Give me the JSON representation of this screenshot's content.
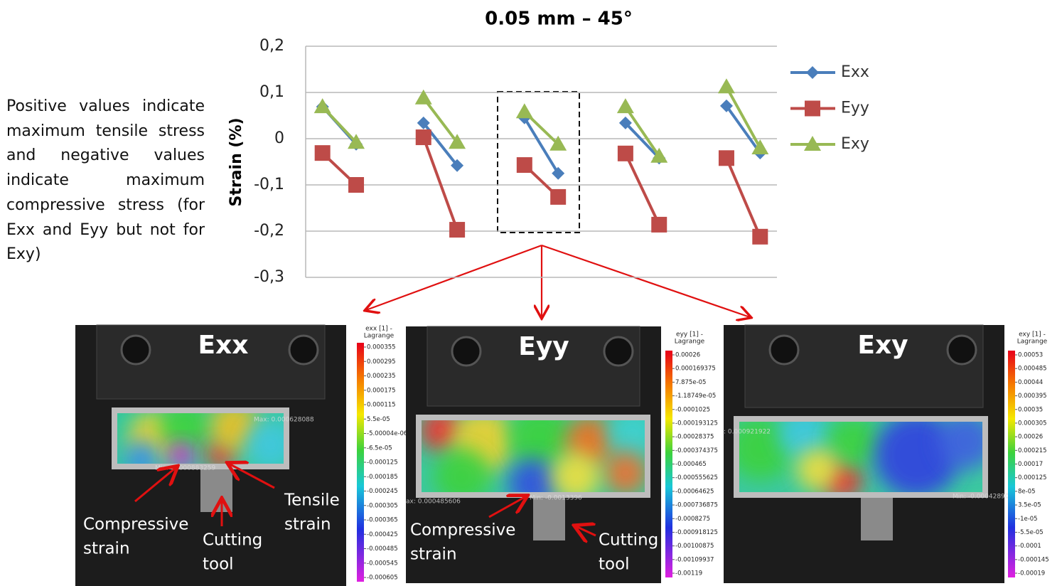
{
  "chart_data": {
    "type": "line",
    "title": "0.05 mm – 45°",
    "y_label": "Strain (%)",
    "categories": [
      null,
      null,
      null,
      null,
      null,
      null,
      null,
      null,
      null,
      null,
      null,
      null,
      null,
      null
    ],
    "series": [
      {
        "name": "Exx",
        "color": "#4a7ebb",
        "marker": "diamond",
        "values": [
          0.069,
          -0.012,
          null,
          0.034,
          -0.058,
          null,
          0.045,
          -0.075,
          null,
          0.034,
          -0.042,
          null,
          0.071,
          -0.031
        ]
      },
      {
        "name": "Eyy",
        "color": "#be4b48",
        "marker": "square",
        "values": [
          -0.031,
          -0.1,
          null,
          0.003,
          -0.197,
          null,
          -0.057,
          -0.126,
          null,
          -0.032,
          -0.186,
          null,
          -0.042,
          -0.212
        ]
      },
      {
        "name": "Exy",
        "color": "#98b954",
        "marker": "triangle",
        "values": [
          0.069,
          -0.008,
          null,
          0.088,
          -0.008,
          null,
          0.058,
          -0.012,
          null,
          0.069,
          -0.038,
          null,
          0.112,
          -0.02
        ]
      }
    ],
    "ylim": [
      -0.3,
      0.2
    ],
    "yticks": [
      {
        "value": 0.2,
        "label": "0,2"
      },
      {
        "value": 0.1,
        "label": "0,1"
      },
      0,
      {
        "value": -0.1,
        "label": "-0,1"
      },
      {
        "value": -0.2,
        "label": "-0,2"
      },
      {
        "value": -0.3,
        "label": "-0,3"
      }
    ],
    "grid": true,
    "legend": "right"
  },
  "note": "Positive values indicate maximum tensile stress and negative values indicate maximum compressive stress (for Exx and Eyy but not for Exy)",
  "panels": [
    {
      "label": "Exx",
      "annotations": [
        [
          "Compressive",
          "strain"
        ],
        [
          "Cutting",
          "tool"
        ],
        [
          "Tensile",
          "strain"
        ]
      ],
      "overlay": [
        "Max: 0.000628088",
        "Min: -0.000883259"
      ],
      "colorbar": {
        "title": [
          "exx [1] -",
          "Lagrange"
        ],
        "labels": [
          "0.000355",
          "0.000295",
          "0.000235",
          "0.000175",
          "0.000115",
          "5.5e-05",
          "-5.00004e-06",
          "-6.5e-05",
          "-0.000125",
          "-0.000185",
          "-0.000245",
          "-0.000305",
          "-0.000365",
          "-0.000425",
          "-0.000485",
          "-0.000545",
          "-0.000605"
        ]
      }
    },
    {
      "label": "Eyy",
      "annotations": [
        [
          "Compressive",
          "strain"
        ],
        [
          "Cutting",
          "tool"
        ]
      ],
      "overlay": [
        "ax: 0.000485606",
        "Min: -0.0013396"
      ],
      "colorbar": {
        "title": [
          "eyy [1] -",
          "Lagrange"
        ],
        "labels": [
          "0.00026",
          "0.000169375",
          "7.875e-05",
          "-1.18749e-05",
          "-0.0001025",
          "-0.000193125",
          "-0.00028375",
          "-0.000374375",
          "-0.000465",
          "-0.000555625",
          "-0.00064625",
          "-0.000736875",
          "-0.0008275",
          "-0.000918125",
          "-0.00100875",
          "-0.00109937",
          "-0.00119"
        ]
      }
    },
    {
      "label": "Exy",
      "annotations": [],
      "overlay": [
        ": 0.000921922",
        "Min: -0.00042890"
      ],
      "colorbar": {
        "title": [
          "exy [1] -",
          "Lagrange"
        ],
        "labels": [
          "0.00053",
          "0.000485",
          "0.00044",
          "0.000395",
          "0.00035",
          "0.000305",
          "0.00026",
          "0.000215",
          "0.00017",
          "0.000125",
          "8e-05",
          "3.5e-05",
          "-1e-05",
          "-5.5e-05",
          "-0.0001",
          "-0.000145",
          "-0.00019"
        ]
      }
    }
  ]
}
